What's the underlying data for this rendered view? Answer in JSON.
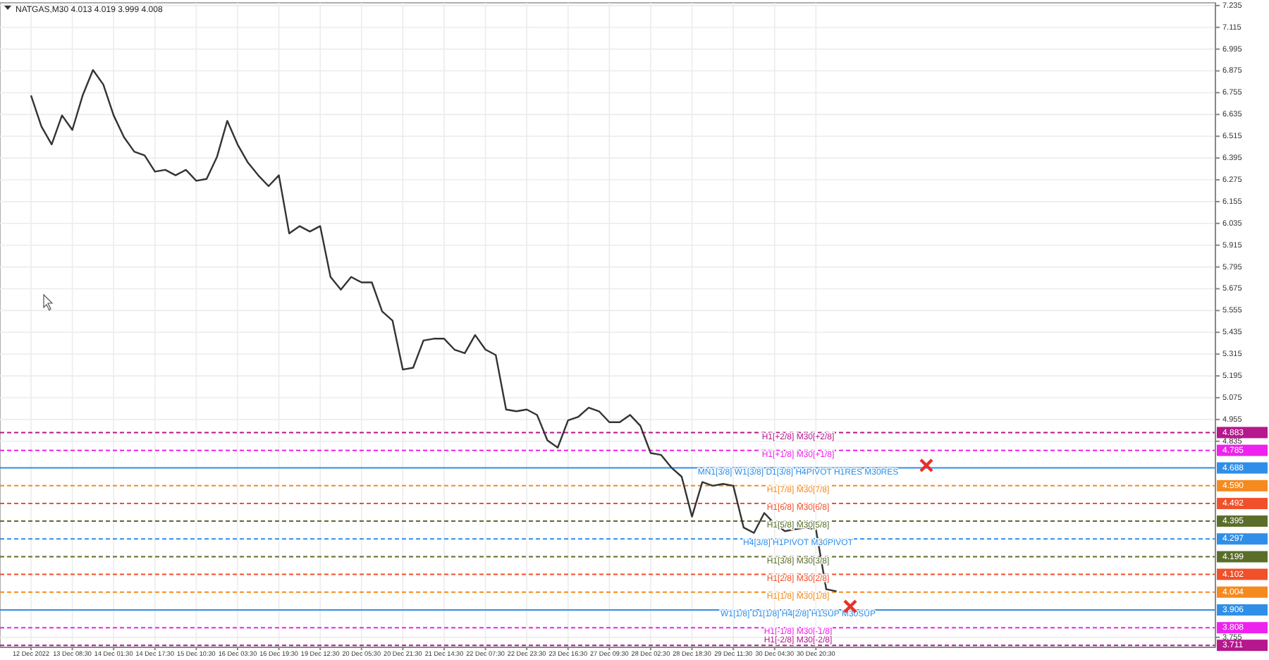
{
  "chart_data": {
    "type": "line",
    "title": "NATGAS,M30  4.013 4.019 3.999 4.008",
    "categories": [
      "12 Dec 2022",
      null,
      null,
      null,
      "13 Dec 08:30",
      null,
      null,
      null,
      "14 Dec 01:30",
      null,
      null,
      null,
      "14 Dec 17:30",
      null,
      null,
      null,
      "15 Dec 10:30",
      null,
      null,
      null,
      "16 Dec 03:30",
      null,
      null,
      null,
      "16 Dec 19:30",
      null,
      null,
      null,
      "19 Dec 12:30",
      null,
      null,
      null,
      "20 Dec 05:30",
      null,
      null,
      null,
      "20 Dec 21:30",
      null,
      null,
      null,
      "21 Dec 14:30",
      null,
      null,
      null,
      "22 Dec 07:30",
      null,
      null,
      null,
      "22 Dec 23:30",
      null,
      null,
      null,
      "23 Dec 16:30",
      null,
      null,
      null,
      "27 Dec 09:30",
      null,
      null,
      null,
      "28 Dec 02:30",
      null,
      null,
      null,
      "28 Dec 18:30",
      null,
      null,
      null,
      "29 Dec 11:30",
      null,
      null,
      null,
      "30 Dec 04:30",
      null,
      null,
      null,
      "30 Dec 20:30",
      null,
      null,
      null,
      null,
      null,
      null,
      null,
      null,
      null,
      null,
      null,
      null,
      null,
      null,
      null,
      null,
      null,
      null,
      null,
      null,
      null,
      null,
      null,
      null,
      null,
      null,
      null,
      null,
      null,
      null,
      null,
      null,
      null,
      null,
      null,
      null,
      null,
      null
    ],
    "series": [
      {
        "color": "#333333",
        "values": [
          6.74,
          6.57,
          6.47,
          6.63,
          6.55,
          6.74,
          6.88,
          6.8,
          6.63,
          6.51,
          6.43,
          6.41,
          6.32,
          6.33,
          6.3,
          6.33,
          6.27,
          6.28,
          6.4,
          6.6,
          6.47,
          6.37,
          6.3,
          6.24,
          6.3,
          5.98,
          6.02,
          5.99,
          6.02,
          5.74,
          5.67,
          5.74,
          5.71,
          5.71,
          5.55,
          5.5,
          5.23,
          5.24,
          5.39,
          5.4,
          5.4,
          5.34,
          5.32,
          5.42,
          5.34,
          5.31,
          5.01,
          5.0,
          5.01,
          4.98,
          4.84,
          4.8,
          4.95,
          4.97,
          5.02,
          5.0,
          4.94,
          4.94,
          4.98,
          4.92,
          4.77,
          4.76,
          4.69,
          4.64,
          4.42,
          4.61,
          4.59,
          4.6,
          4.59,
          4.36,
          4.33,
          4.44,
          4.38,
          4.34,
          4.35,
          4.36,
          4.35,
          4.02,
          4.008,
          null,
          null,
          null,
          null,
          null,
          null,
          null,
          null,
          null,
          null,
          null,
          null,
          null,
          null,
          null,
          null,
          null,
          null,
          null,
          null,
          null,
          null,
          null,
          null,
          null,
          null,
          null,
          null,
          null,
          null,
          null,
          null,
          null,
          null,
          null,
          null
        ]
      }
    ],
    "ylim": [
      3.7,
      7.25
    ],
    "yticks": [
      7.235,
      7.115,
      6.995,
      6.875,
      6.755,
      6.635,
      6.515,
      6.395,
      6.275,
      6.155,
      6.035,
      5.915,
      5.795,
      5.675,
      5.555,
      5.435,
      5.315,
      5.195,
      5.075,
      4.955,
      4.835,
      3.755
    ],
    "grid": true,
    "marker": "none",
    "line_style": "solid",
    "ref_lines": [
      {
        "axis": "y",
        "value": 4.883,
        "label": "4.883",
        "color": "#b5178c",
        "line_style": "dashed"
      },
      {
        "axis": "y",
        "value": 4.785,
        "label": "4.785",
        "color": "#ee22ee",
        "line_style": "dashed"
      },
      {
        "axis": "y",
        "value": 4.688,
        "label": "4.688",
        "color": "#2f8fe8",
        "line_style": "solid"
      },
      {
        "axis": "y",
        "value": 4.59,
        "label": "4.590",
        "color": "#f58a1f",
        "line_style": "dashed"
      },
      {
        "axis": "y",
        "value": 4.492,
        "label": "4.492",
        "color": "#f0502a",
        "line_style": "dashed"
      },
      {
        "axis": "y",
        "value": 4.395,
        "label": "4.395",
        "color": "#5a6e2a",
        "line_style": "dashed"
      },
      {
        "axis": "y",
        "value": 4.297,
        "label": "4.297",
        "color": "#2f8fe8",
        "line_style": "dashed"
      },
      {
        "axis": "y",
        "value": 4.199,
        "label": "4.199",
        "color": "#5a6e2a",
        "line_style": "dashed"
      },
      {
        "axis": "y",
        "value": 4.102,
        "label": "4.102",
        "color": "#f0502a",
        "line_style": "dashed"
      },
      {
        "axis": "y",
        "value": 4.004,
        "label": "4.004",
        "color": "#f58a1f",
        "line_style": "dashed"
      },
      {
        "axis": "y",
        "value": 3.906,
        "label": "3.906",
        "color": "#2f8fe8",
        "line_style": "solid"
      },
      {
        "axis": "y",
        "value": 3.808,
        "label": "3.808",
        "color": "#ee22ee",
        "line_style": "dashed"
      },
      {
        "axis": "y",
        "value": 3.711,
        "label": "3.711",
        "color": "#b5178c",
        "line_style": "dashed"
      }
    ],
    "annotations": [
      {
        "text": "H1[+2/8] M30[+2/8]",
        "y": 4.883
      },
      {
        "text": "H1[+1/8] M30[+1/8]",
        "y": 4.785
      },
      {
        "text": "MN1[3/8] W1[3/8] D1[3/8] H4PIVOT H1RES M30RES",
        "y": 4.688
      },
      {
        "text": "H1[7/8] M30[7/8]",
        "y": 4.59
      },
      {
        "text": "H1[6/8] M30[6/8]",
        "y": 4.492
      },
      {
        "text": "H1[5/8] M30[5/8]",
        "y": 4.395
      },
      {
        "text": "H4[3/8] H1PIVOT M30PIVOT",
        "y": 4.297
      },
      {
        "text": "H1[3/8] M30[3/8]",
        "y": 4.199
      },
      {
        "text": "H1[2/8] M30[2/8]",
        "y": 4.102
      },
      {
        "text": "H1[1/8] M30[1/8]",
        "y": 4.004
      },
      {
        "text": "W1[1/8] D1[1/8] H4[2/8] H1SUP M30SUP",
        "y": 3.906
      },
      {
        "text": "H1[-1/8] M30[-1/8]",
        "y": 3.808
      },
      {
        "text": "H1[-2/8] M30[-2/8]",
        "y": 3.711
      }
    ]
  }
}
